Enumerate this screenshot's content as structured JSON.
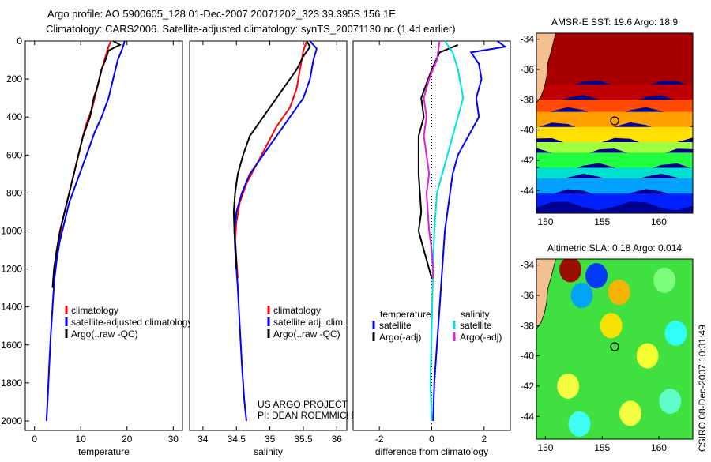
{
  "header": {
    "line1": "Argo profile: AO 5900605_128 01-Dec-2007 20071202_323 39.395S 156.1E",
    "line2": "Climatology: CARS2006. Satellite-adjusted climatology: synTS_20071130.nc (1.4d earlier)"
  },
  "side_stamp": "CSIRO 08-Dec-2007 10:31:49",
  "colors": {
    "clim": "#ff0000",
    "sat": "#0000ff",
    "argo": "#000000",
    "sat_sal": "#00e0e0",
    "argo_sal": "#e020e0"
  },
  "chart_data": [
    {
      "id": "temperature",
      "type": "line",
      "title": "",
      "xlabel": "temperature",
      "ylabel": "",
      "xlim": [
        -2,
        32
      ],
      "ylim": [
        2050,
        0
      ],
      "xticks": [
        0,
        10,
        20,
        30
      ],
      "yticks": [
        0,
        200,
        400,
        600,
        800,
        1000,
        1200,
        1400,
        1600,
        1800,
        2000
      ],
      "legend": [
        "climatology",
        "satellite-adjusted climatology",
        "Argo(..raw -QC)"
      ],
      "series": [
        {
          "name": "climatology",
          "color": "clim",
          "points": [
            [
              16.5,
              0
            ],
            [
              16,
              30
            ],
            [
              15.5,
              70
            ],
            [
              14.5,
              150
            ],
            [
              13.5,
              250
            ],
            [
              12.5,
              350
            ],
            [
              11,
              450
            ],
            [
              10,
              550
            ],
            [
              9,
              650
            ],
            [
              8,
              750
            ],
            [
              7,
              850
            ],
            [
              6,
              950
            ],
            [
              5.3,
              1050
            ],
            [
              4.8,
              1150
            ],
            [
              4.3,
              1250
            ]
          ]
        },
        {
          "name": "satellite-adjusted climatology",
          "color": "sat",
          "points": [
            [
              19.5,
              0
            ],
            [
              19,
              40
            ],
            [
              18,
              100
            ],
            [
              17,
              200
            ],
            [
              16,
              300
            ],
            [
              14.5,
              400
            ],
            [
              13,
              480
            ],
            [
              12,
              550
            ],
            [
              10.5,
              650
            ],
            [
              9,
              750
            ],
            [
              7.5,
              850
            ],
            [
              6.5,
              950
            ],
            [
              5.5,
              1050
            ],
            [
              4.8,
              1150
            ],
            [
              4.3,
              1250
            ],
            [
              3.9,
              1400
            ],
            [
              3.5,
              1550
            ],
            [
              3.2,
              1700
            ],
            [
              2.9,
              1850
            ],
            [
              2.6,
              2000
            ]
          ]
        },
        {
          "name": "Argo(..raw -QC)",
          "color": "argo",
          "points": [
            [
              17,
              0
            ],
            [
              18.5,
              20
            ],
            [
              16,
              50
            ],
            [
              15.5,
              90
            ],
            [
              14.5,
              150
            ],
            [
              13.5,
              250
            ],
            [
              12.8,
              300
            ],
            [
              12,
              400
            ],
            [
              10.5,
              500
            ],
            [
              9.5,
              600
            ],
            [
              8.5,
              700
            ],
            [
              7.5,
              800
            ],
            [
              6.5,
              900
            ],
            [
              5.5,
              1000
            ],
            [
              4.8,
              1100
            ],
            [
              4.2,
              1200
            ],
            [
              3.9,
              1300
            ]
          ]
        }
      ]
    },
    {
      "id": "salinity",
      "type": "line",
      "title": "",
      "xlabel": "salinity",
      "ylabel": "",
      "xlim": [
        33.8,
        36.15
      ],
      "ylim": [
        2050,
        0
      ],
      "xticks": [
        34,
        34.5,
        35,
        35.5,
        36
      ],
      "yticks": [],
      "legend": [
        "climatology",
        "satellite adj. clim.",
        "Argo(..raw -QC)"
      ],
      "series": [
        {
          "name": "climatology",
          "color": "clim",
          "points": [
            [
              35.55,
              0
            ],
            [
              35.5,
              50
            ],
            [
              35.45,
              150
            ],
            [
              35.4,
              250
            ],
            [
              35.3,
              350
            ],
            [
              35.1,
              450
            ],
            [
              34.95,
              550
            ],
            [
              34.8,
              650
            ],
            [
              34.65,
              750
            ],
            [
              34.55,
              850
            ],
            [
              34.5,
              950
            ],
            [
              34.48,
              1050
            ],
            [
              34.5,
              1150
            ],
            [
              34.52,
              1250
            ]
          ]
        },
        {
          "name": "satellite adj. clim.",
          "color": "sat",
          "points": [
            [
              35.6,
              0
            ],
            [
              35.7,
              40
            ],
            [
              35.65,
              100
            ],
            [
              35.6,
              200
            ],
            [
              35.5,
              300
            ],
            [
              35.3,
              400
            ],
            [
              35.1,
              500
            ],
            [
              34.9,
              600
            ],
            [
              34.7,
              700
            ],
            [
              34.58,
              800
            ],
            [
              34.5,
              900
            ],
            [
              34.47,
              1000
            ],
            [
              34.48,
              1100
            ],
            [
              34.5,
              1200
            ],
            [
              34.52,
              1300
            ],
            [
              34.55,
              1500
            ],
            [
              34.58,
              1700
            ],
            [
              34.62,
              1900
            ],
            [
              34.65,
              2000
            ]
          ]
        },
        {
          "name": "Argo(..raw -QC)",
          "color": "argo",
          "points": [
            [
              35.55,
              0
            ],
            [
              35.6,
              30
            ],
            [
              35.5,
              80
            ],
            [
              35.4,
              150
            ],
            [
              35.3,
              200
            ],
            [
              35.1,
              300
            ],
            [
              34.9,
              400
            ],
            [
              34.7,
              500
            ],
            [
              34.6,
              600
            ],
            [
              34.52,
              700
            ],
            [
              34.48,
              800
            ],
            [
              34.46,
              900
            ],
            [
              34.47,
              1000
            ],
            [
              34.49,
              1100
            ],
            [
              34.5,
              1200
            ]
          ]
        }
      ]
    },
    {
      "id": "difference",
      "type": "line",
      "title": "",
      "xlabel": "difference from climatology",
      "ylabel": "",
      "xlim": [
        -3,
        3
      ],
      "ylim": [
        2050,
        0
      ],
      "xticks": [
        -2,
        0,
        2
      ],
      "yticks": [],
      "legend_temperature_title": "temperature",
      "legend_salinity_title": "salinity",
      "legend": [
        "satellite",
        "Argo(-adj)",
        "satellite",
        "Argo(-adj)"
      ],
      "series": [
        {
          "name": "satellite",
          "group": "temperature",
          "color": "sat",
          "points": [
            [
              2.5,
              0
            ],
            [
              2.8,
              30
            ],
            [
              1.5,
              60
            ],
            [
              1.8,
              120
            ],
            [
              1.9,
              200
            ],
            [
              1.7,
              300
            ],
            [
              1.8,
              400
            ],
            [
              1.4,
              500
            ],
            [
              1,
              600
            ],
            [
              0.8,
              700
            ],
            [
              0.7,
              800
            ],
            [
              0.6,
              900
            ],
            [
              0.5,
              1000
            ],
            [
              0.4,
              1200
            ],
            [
              0.3,
              1400
            ],
            [
              0.2,
              1600
            ],
            [
              0.1,
              1800
            ],
            [
              0.05,
              2000
            ]
          ]
        },
        {
          "name": "Argo(-adj)",
          "group": "temperature",
          "color": "argo",
          "points": [
            [
              1,
              20
            ],
            [
              0.3,
              60
            ],
            [
              0,
              150
            ],
            [
              -0.4,
              300
            ],
            [
              -0.3,
              400
            ],
            [
              -0.5,
              500
            ],
            [
              -0.5,
              700
            ],
            [
              -0.4,
              900
            ],
            [
              -0.5,
              1000
            ],
            [
              -0.3,
              1100
            ],
            [
              -0.1,
              1200
            ],
            [
              0,
              1250
            ]
          ]
        },
        {
          "name": "satellite",
          "group": "salinity",
          "color": "sat_sal",
          "points": [
            [
              0.5,
              0
            ],
            [
              0.8,
              60
            ],
            [
              1,
              150
            ],
            [
              1.2,
              300
            ],
            [
              1,
              400
            ],
            [
              0.8,
              500
            ],
            [
              0.6,
              600
            ],
            [
              0.4,
              700
            ],
            [
              0.2,
              800
            ],
            [
              0.1,
              1000
            ],
            [
              0.05,
              1200
            ],
            [
              0,
              1500
            ],
            [
              -0.05,
              1800
            ],
            [
              0,
              2000
            ]
          ]
        },
        {
          "name": "Argo(-adj)",
          "group": "salinity",
          "color": "argo_sal",
          "points": [
            [
              0.3,
              0
            ],
            [
              0.2,
              100
            ],
            [
              -0.1,
              200
            ],
            [
              -0.3,
              300
            ],
            [
              -0.2,
              400
            ],
            [
              -0.3,
              500
            ],
            [
              -0.2,
              600
            ],
            [
              -0.1,
              700
            ],
            [
              -0.2,
              800
            ],
            [
              -0.1,
              1000
            ],
            [
              0,
              1100
            ],
            [
              0.05,
              1200
            ],
            [
              0.05,
              1250
            ]
          ]
        }
      ]
    },
    {
      "id": "sst_map",
      "type": "heatmap",
      "title": "AMSR-E SST: 19.6 Argo: 18.9",
      "xlim": [
        149.2,
        163
      ],
      "ylim": [
        -45.5,
        -33.6
      ],
      "xticks": [
        150,
        155,
        160
      ],
      "yticks": [
        -34,
        -36,
        -38,
        -40,
        -42,
        -44
      ],
      "float_position": [
        156.1,
        -39.395
      ],
      "bands": [
        {
          "lat": -34,
          "color": "#a80000"
        },
        {
          "lat": -37,
          "color": "#c00000"
        },
        {
          "lat": -38,
          "color": "#ff4a00"
        },
        {
          "lat": -38.8,
          "color": "#ffa000"
        },
        {
          "lat": -39.8,
          "color": "#ffe000"
        },
        {
          "lat": -40.8,
          "color": "#a0ff40"
        },
        {
          "lat": -41.5,
          "color": "#20ff40"
        },
        {
          "lat": -42.5,
          "color": "#00e0d0"
        },
        {
          "lat": -43.2,
          "color": "#00a0ff"
        },
        {
          "lat": -44.2,
          "color": "#0020ff"
        },
        {
          "lat": -45,
          "color": "#000090"
        }
      ]
    },
    {
      "id": "sla_map",
      "type": "heatmap",
      "title": "Altimetric SLA: 0.18 Argo: 0.014",
      "xlim": [
        149.2,
        163
      ],
      "ylim": [
        -45.5,
        -33.6
      ],
      "xticks": [
        150,
        155,
        160
      ],
      "yticks": [
        -34,
        -36,
        -38,
        -40,
        -42,
        -44
      ],
      "float_position": [
        156.1,
        -39.395
      ],
      "blobs": [
        {
          "x": 152.2,
          "y": -34.3,
          "color": "#a00000"
        },
        {
          "x": 154.5,
          "y": -34.7,
          "color": "#0030ff"
        },
        {
          "x": 156.5,
          "y": -35.8,
          "color": "#ffb000"
        },
        {
          "x": 153.2,
          "y": -36,
          "color": "#00a0ff"
        },
        {
          "x": 155.8,
          "y": -38,
          "color": "#ffe000"
        },
        {
          "x": 160.5,
          "y": -35,
          "color": "#80ff80"
        },
        {
          "x": 159,
          "y": -40,
          "color": "#ffff30"
        },
        {
          "x": 161.5,
          "y": -38.5,
          "color": "#30ffff"
        },
        {
          "x": 152,
          "y": -42,
          "color": "#ffff40"
        },
        {
          "x": 157.5,
          "y": -43.8,
          "color": "#ffff40"
        },
        {
          "x": 153,
          "y": -44.5,
          "color": "#40ffff"
        },
        {
          "x": 161,
          "y": -43,
          "color": "#60ffd0"
        }
      ]
    }
  ]
}
